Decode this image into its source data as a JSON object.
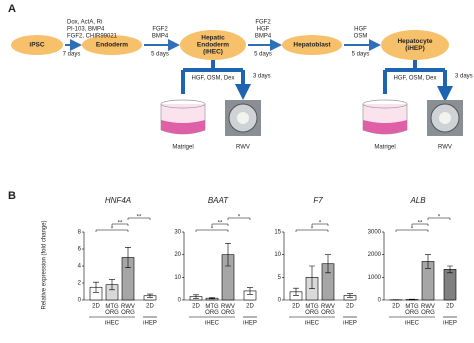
{
  "panel_a": {
    "label": "A",
    "nodes": [
      [
        "iPSC"
      ],
      [
        "Endoderm"
      ],
      [
        "Hepatic",
        "Endoderm",
        "(iHEC)"
      ],
      [
        "Hepatoblast"
      ],
      [
        "Hepatocyte",
        "(iHEP)"
      ]
    ],
    "steps": [
      {
        "factors": [
          "Dox, ActA, Ri",
          "PI-103, BMP4",
          "FGF2, CHIR99021"
        ],
        "duration": "7 days"
      },
      {
        "factors": [
          "FGF2",
          "BMP4"
        ],
        "duration": "5 days"
      },
      {
        "factors": [
          "FGF2",
          "HGF",
          "BMP4"
        ],
        "duration": "5 days"
      },
      {
        "factors": [
          "HGF",
          "OSM"
        ],
        "duration": "5 days"
      }
    ],
    "branches": [
      {
        "factors": "HGF, OSM, Dex",
        "duration": "3 days",
        "outputs": [
          "Matrigel",
          "RWV"
        ]
      },
      {
        "factors": "HGF, OSM, Dex",
        "duration": "3 days",
        "outputs": [
          "Matrigel",
          "RWV"
        ]
      }
    ]
  },
  "panel_b": {
    "label": "B",
    "ylabel": "Relative expression (fold change)",
    "groups": [
      "iHEC",
      "iHEP"
    ]
  },
  "chart_data": [
    {
      "type": "bar",
      "title": "HNF4A",
      "categories": [
        "2D",
        "MTG ORG",
        "RWV ORG",
        "2D"
      ],
      "values": [
        1.5,
        1.8,
        5,
        0.5
      ],
      "errors": [
        0.6,
        0.6,
        1.2,
        0.2
      ],
      "colors": [
        "#ffffff",
        "#d9d9d9",
        "#a6a6a6",
        "#ffffff"
      ],
      "ylim": [
        0,
        8
      ],
      "yticks": [
        0,
        2,
        4,
        6,
        8
      ],
      "significance": [
        "*",
        "**",
        "**"
      ]
    },
    {
      "type": "bar",
      "title": "BAAT",
      "categories": [
        "2D",
        "MTG ORG",
        "RWV ORG",
        "2D"
      ],
      "values": [
        1.5,
        0.8,
        20,
        4
      ],
      "errors": [
        0.8,
        0.3,
        5,
        1.5
      ],
      "colors": [
        "#ffffff",
        "#d9d9d9",
        "#a6a6a6",
        "#ffffff"
      ],
      "ylim": [
        0,
        30
      ],
      "yticks": [
        0,
        10,
        20,
        30
      ],
      "significance": [
        "*",
        "**",
        "*"
      ]
    },
    {
      "type": "bar",
      "title": "F7",
      "categories": [
        "2D",
        "MTG ORG",
        "RWV ORG",
        "2D"
      ],
      "values": [
        1.8,
        5,
        8,
        1
      ],
      "errors": [
        0.8,
        2.5,
        2,
        0.4
      ],
      "colors": [
        "#ffffff",
        "#d9d9d9",
        "#a6a6a6",
        "#ffffff"
      ],
      "ylim": [
        0,
        15
      ],
      "yticks": [
        0,
        5,
        10,
        15
      ],
      "significance": [
        "*",
        "*"
      ]
    },
    {
      "type": "bar",
      "title": "ALB",
      "categories": [
        "2D",
        "MTG ORG",
        "RWV ORG",
        "2D"
      ],
      "values": [
        10,
        20,
        1700,
        1350
      ],
      "errors": [
        5,
        15,
        300,
        150
      ],
      "colors": [
        "#ffffff",
        "#d9d9d9",
        "#a6a6a6",
        "#7f7f7f"
      ],
      "ylim": [
        0,
        3000
      ],
      "yticks": [
        0,
        1000,
        2000,
        3000
      ],
      "significance": [
        "*",
        "**",
        "*"
      ]
    }
  ]
}
